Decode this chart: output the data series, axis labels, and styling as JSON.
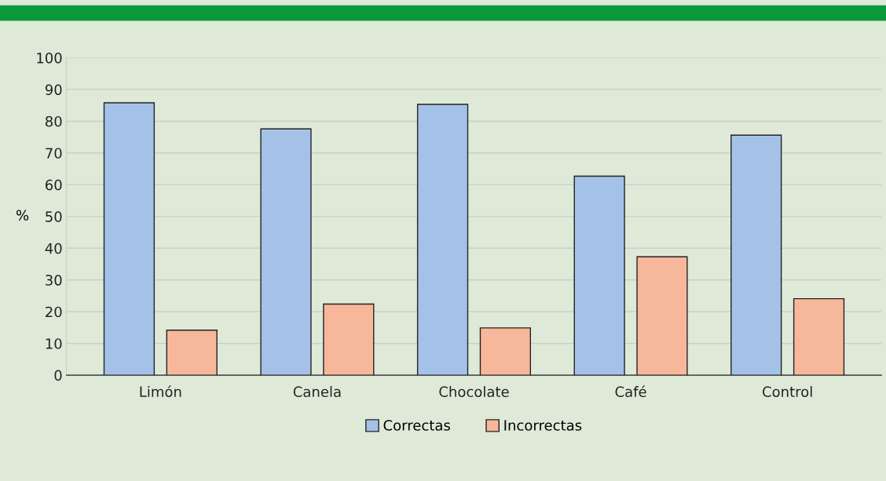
{
  "chart_data": {
    "type": "bar",
    "ylabel": "%",
    "categories": [
      "Limón",
      "Canela",
      "Chocolate",
      "Café",
      "Control"
    ],
    "series": [
      {
        "name": "Correctas",
        "color": "#a4c2e8",
        "values": [
          85.8,
          77.6,
          85.3,
          62.7,
          75.6
        ]
      },
      {
        "name": "Incorrectas",
        "color": "#f7b79a",
        "values": [
          14.2,
          22.4,
          14.9,
          37.3,
          24.1
        ]
      }
    ],
    "ylim": [
      0,
      100
    ],
    "yticks": [
      0,
      10,
      20,
      30,
      40,
      50,
      60,
      70,
      80,
      90,
      100
    ],
    "grid": "y",
    "legend": "bottom"
  }
}
